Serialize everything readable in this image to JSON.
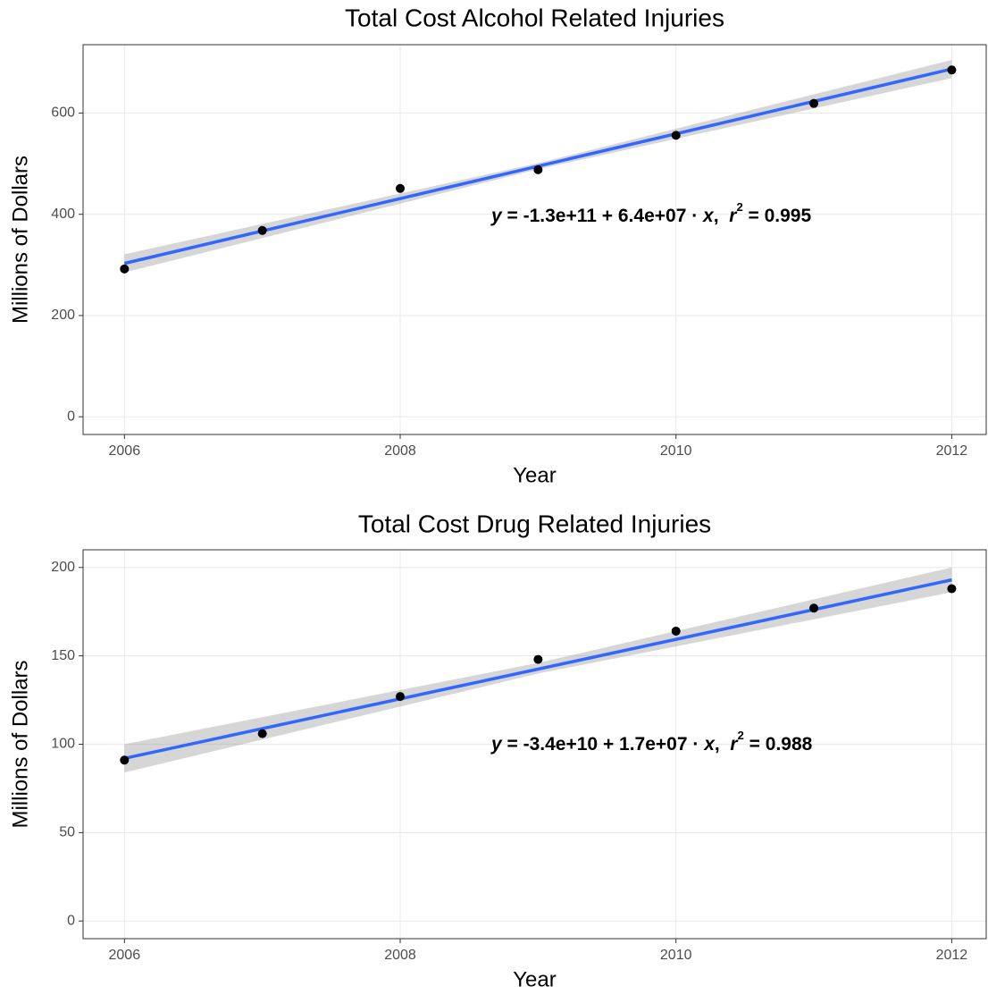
{
  "chart_data": [
    {
      "type": "scatter",
      "title": "Total Cost Alcohol Related Injuries",
      "x_label": "Year",
      "y_label": "Millions of Dollars",
      "x": [
        2006,
        2007,
        2008,
        2009,
        2010,
        2011,
        2012
      ],
      "values": [
        292,
        368,
        451,
        488,
        556,
        619,
        685
      ],
      "color": "#000000",
      "xlim": [
        2005.7,
        2012.25
      ],
      "ylim": [
        -35,
        735
      ],
      "xticks": [
        2006,
        2008,
        2010,
        2012
      ],
      "yticks": [
        0,
        200,
        400,
        600
      ],
      "grid": true,
      "fit_line": {
        "x": [
          2006,
          2012
        ],
        "values": [
          303,
          687
        ],
        "color": "#3366ff"
      },
      "band": {
        "x": [
          2006,
          2009,
          2012
        ],
        "lower": [
          285,
          489,
          669
        ],
        "upper": [
          321,
          501,
          705
        ],
        "color": "#999999"
      },
      "annotation": [
        "y",
        " = -1.3e+11 + 6.4e+07 · ",
        "x",
        ",  ",
        "r",
        "2",
        " = 0.995"
      ]
    },
    {
      "type": "scatter",
      "title": "Total Cost Drug Related Injuries",
      "x_label": "Year",
      "y_label": "Millions of Dollars",
      "x": [
        2006,
        2007,
        2008,
        2009,
        2010,
        2011,
        2012
      ],
      "values": [
        91,
        106,
        127,
        148,
        164,
        177,
        188
      ],
      "color": "#000000",
      "xlim": [
        2005.7,
        2012.25
      ],
      "ylim": [
        -10,
        210
      ],
      "xticks": [
        2006,
        2008,
        2010,
        2012
      ],
      "yticks": [
        0,
        50,
        100,
        150,
        200
      ],
      "grid": true,
      "fit_line": {
        "x": [
          2006,
          2012
        ],
        "values": [
          92,
          193
        ],
        "color": "#3366ff"
      },
      "band": {
        "x": [
          2006,
          2009,
          2012
        ],
        "lower": [
          84,
          140,
          186
        ],
        "upper": [
          100,
          146,
          200
        ],
        "color": "#999999"
      },
      "annotation": [
        "y",
        " = -3.4e+10 + 1.7e+07 · ",
        "x",
        ",  ",
        "r",
        "2",
        " = 0.988"
      ]
    }
  ]
}
